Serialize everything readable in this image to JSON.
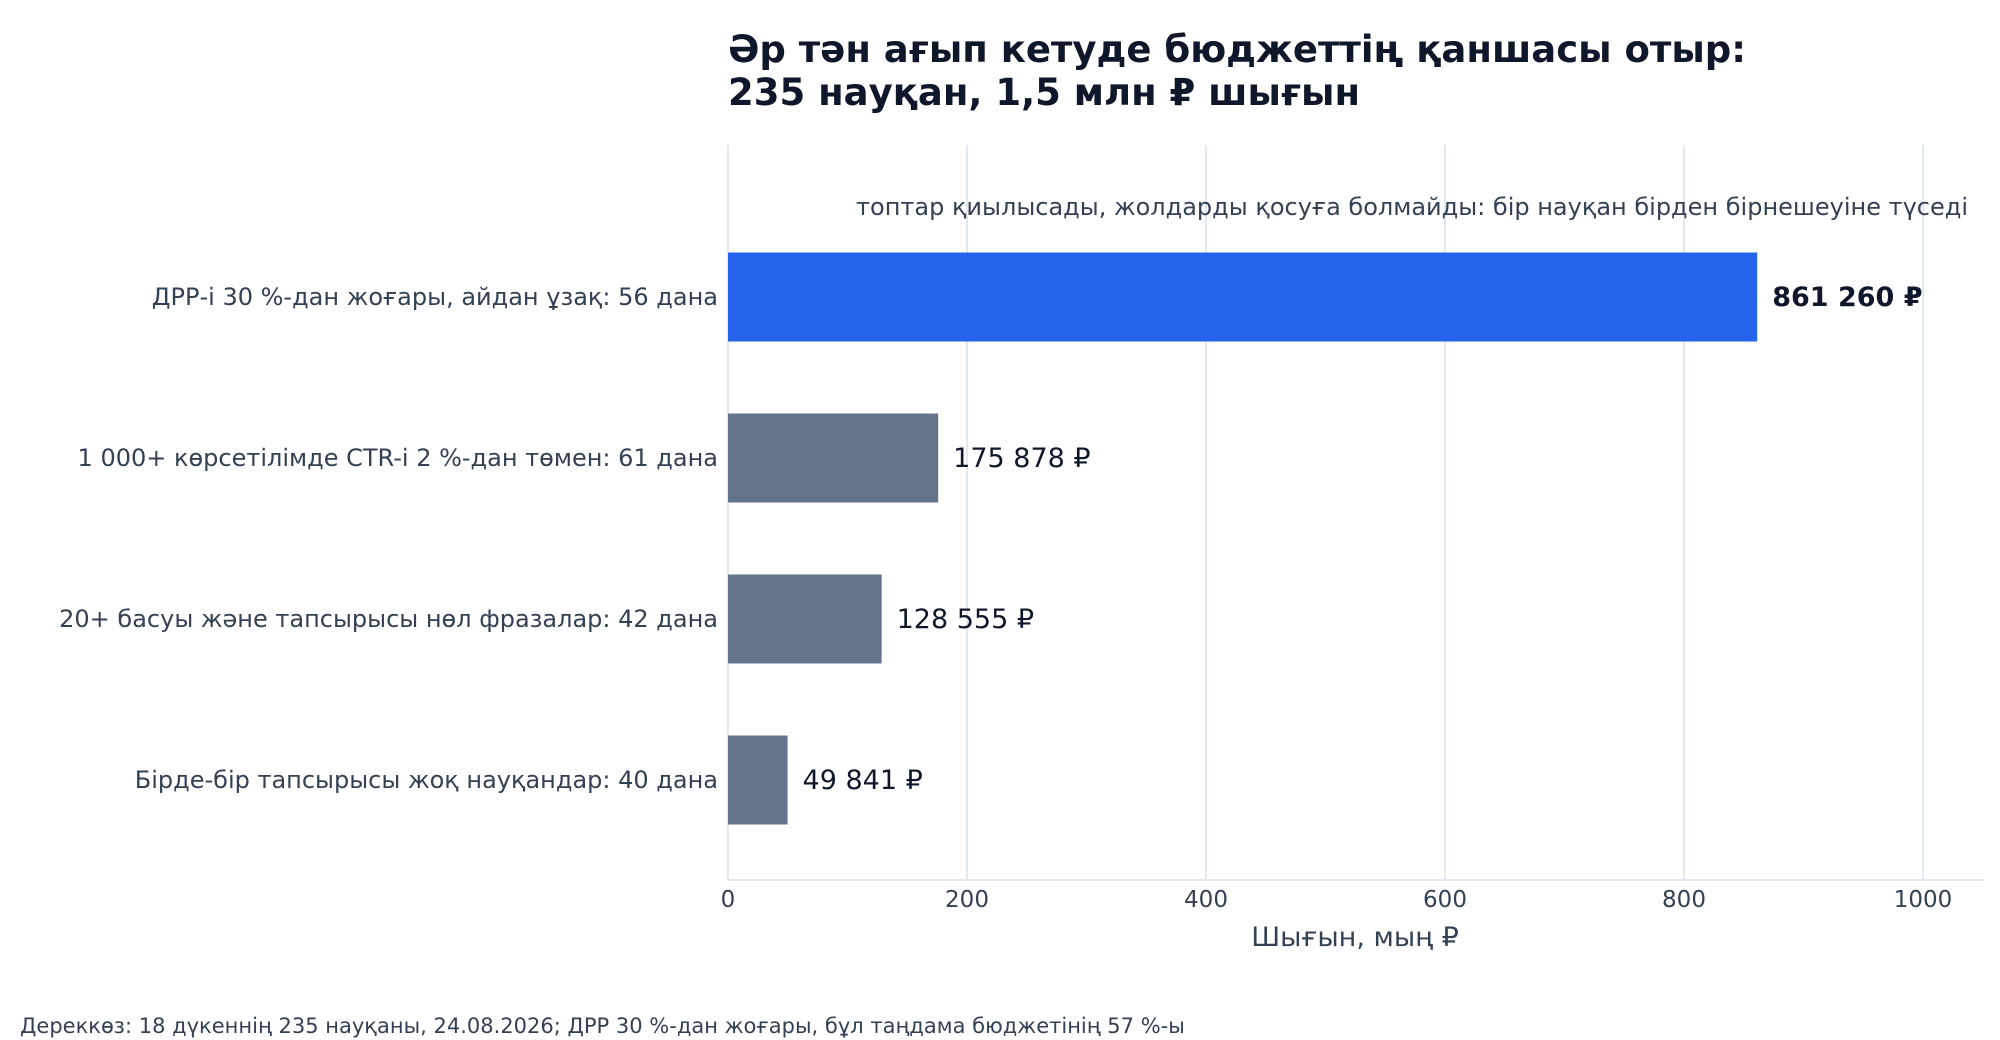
{
  "chart_data": {
    "type": "bar",
    "orientation": "horizontal",
    "title": "Әр тән ағып кетуде бюджеттің қаншасы отыр:",
    "subtitle": "235 науқан, 1,5 млн ₽ шығын",
    "note": "топтар қиылысады, жолдарды қосуға болмайды: бір науқан бірден бірнешеуіне түседі",
    "categories": [
      "ДРР-і 30 %-дан жоғары, айдан ұзақ: 56 дана",
      "1 000+ көрсетілімде CTR-і 2 %-дан төмен: 61 дана",
      "20+ басуы және тапсырысы нөл фразалар: 42 дана",
      "Бірде-бір тапсырысы жоқ науқандар: 40 дана"
    ],
    "values": [
      861.26,
      175.878,
      128.555,
      49.841
    ],
    "value_labels": [
      "861 260 ₽",
      "175 878 ₽",
      "128 555 ₽",
      "49 841 ₽"
    ],
    "highlight_index": 0,
    "xlabel": "Шығын, мың ₽",
    "xlim": [
      0,
      1050
    ],
    "xticks": [
      0,
      200,
      400,
      600,
      800,
      1000
    ],
    "xtick_labels": [
      "0",
      "200",
      "400",
      "600",
      "800",
      "1000"
    ],
    "grid": true,
    "colors": {
      "highlight": "#2563eb",
      "default": "#64748b",
      "grid": "#e2e8f0",
      "title": "#0f172a",
      "text": "#334155"
    },
    "source": "Дереккөз: 18 дүкеннің 235 науқаны, 24.08.2026; ДРР 30 %-дан жоғары, бұл таңдама бюджетінің 57 %-ы"
  }
}
